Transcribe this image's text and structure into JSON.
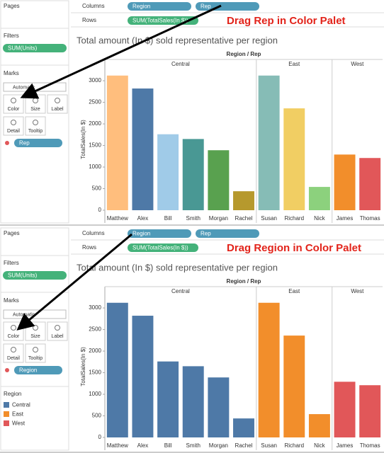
{
  "panels": [
    {
      "pages": "Pages",
      "filters": "Filters",
      "filter_pills": [
        "SUM(Units)"
      ],
      "marks": "Marks",
      "mark_type": "Automatic",
      "mark_buttons": [
        "Color",
        "Size",
        "Label",
        "Detail",
        "Tooltip"
      ],
      "mark_pills": [
        "Rep"
      ],
      "columns_label": "Columns",
      "columns": [
        "Region",
        "Rep"
      ],
      "rows_label": "Rows",
      "rows": [
        "SUM(TotalSales(In $))"
      ],
      "annotation": "Drag Rep in Color Palet"
    },
    {
      "pages": "Pages",
      "filters": "Filters",
      "filter_pills": [
        "SUM(Units)"
      ],
      "marks": "Marks",
      "mark_type": "Automatic",
      "mark_buttons": [
        "Color",
        "Size",
        "Label",
        "Detail",
        "Tooltip"
      ],
      "mark_pills": [
        "Region"
      ],
      "columns_label": "Columns",
      "columns": [
        "Region",
        "Rep"
      ],
      "rows_label": "Rows",
      "rows": [
        "SUM(TotalSales(In $))"
      ],
      "annotation": "Drag Region in Color Palet",
      "legend_title": "Region"
    }
  ],
  "chart_data": [
    {
      "type": "bar",
      "title": "Total amount (In $) sold representative per region",
      "header": "Region / Rep",
      "y_label": "TotalSales(In $)",
      "ylim": [
        0,
        3280
      ],
      "yticks": [
        0,
        500,
        1000,
        1500,
        2000,
        2500,
        3000
      ],
      "groups": [
        {
          "name": "Central",
          "categories": [
            "Matthew",
            "Alex",
            "Bill",
            "Smith",
            "Morgan",
            "Rachel"
          ],
          "values": [
            3120,
            2820,
            1760,
            1650,
            1390,
            440
          ],
          "colors": [
            "#ffbe7d",
            "#4e79a7",
            "#a0cbe8",
            "#499894",
            "#59a14f",
            "#b6992d"
          ]
        },
        {
          "name": "East",
          "categories": [
            "Susan",
            "Richard",
            "Nick"
          ],
          "values": [
            3120,
            2360,
            540
          ],
          "colors": [
            "#86bcb6",
            "#f1ce63",
            "#8cd17d"
          ]
        },
        {
          "name": "West",
          "categories": [
            "James",
            "Thomas"
          ],
          "values": [
            1290,
            1210
          ],
          "colors": [
            "#f28e2b",
            "#e15759"
          ]
        }
      ]
    },
    {
      "type": "bar",
      "title": "Total amount (In $) sold representative per region",
      "header": "Region / Rep",
      "y_label": "TotalSales(In $)",
      "ylim": [
        0,
        3280
      ],
      "yticks": [
        0,
        500,
        1000,
        1500,
        2000,
        2500,
        3000
      ],
      "legend": true,
      "groups": [
        {
          "name": "Central",
          "categories": [
            "Matthew",
            "Alex",
            "Bill",
            "Smith",
            "Morgan",
            "Rachel"
          ],
          "values": [
            3120,
            2820,
            1760,
            1650,
            1390,
            440
          ],
          "color": "#4e79a7"
        },
        {
          "name": "East",
          "categories": [
            "Susan",
            "Richard",
            "Nick"
          ],
          "values": [
            3120,
            2360,
            540
          ],
          "color": "#f28e2b"
        },
        {
          "name": "West",
          "categories": [
            "James",
            "Thomas"
          ],
          "values": [
            1290,
            1210
          ],
          "color": "#e15759"
        }
      ]
    }
  ]
}
